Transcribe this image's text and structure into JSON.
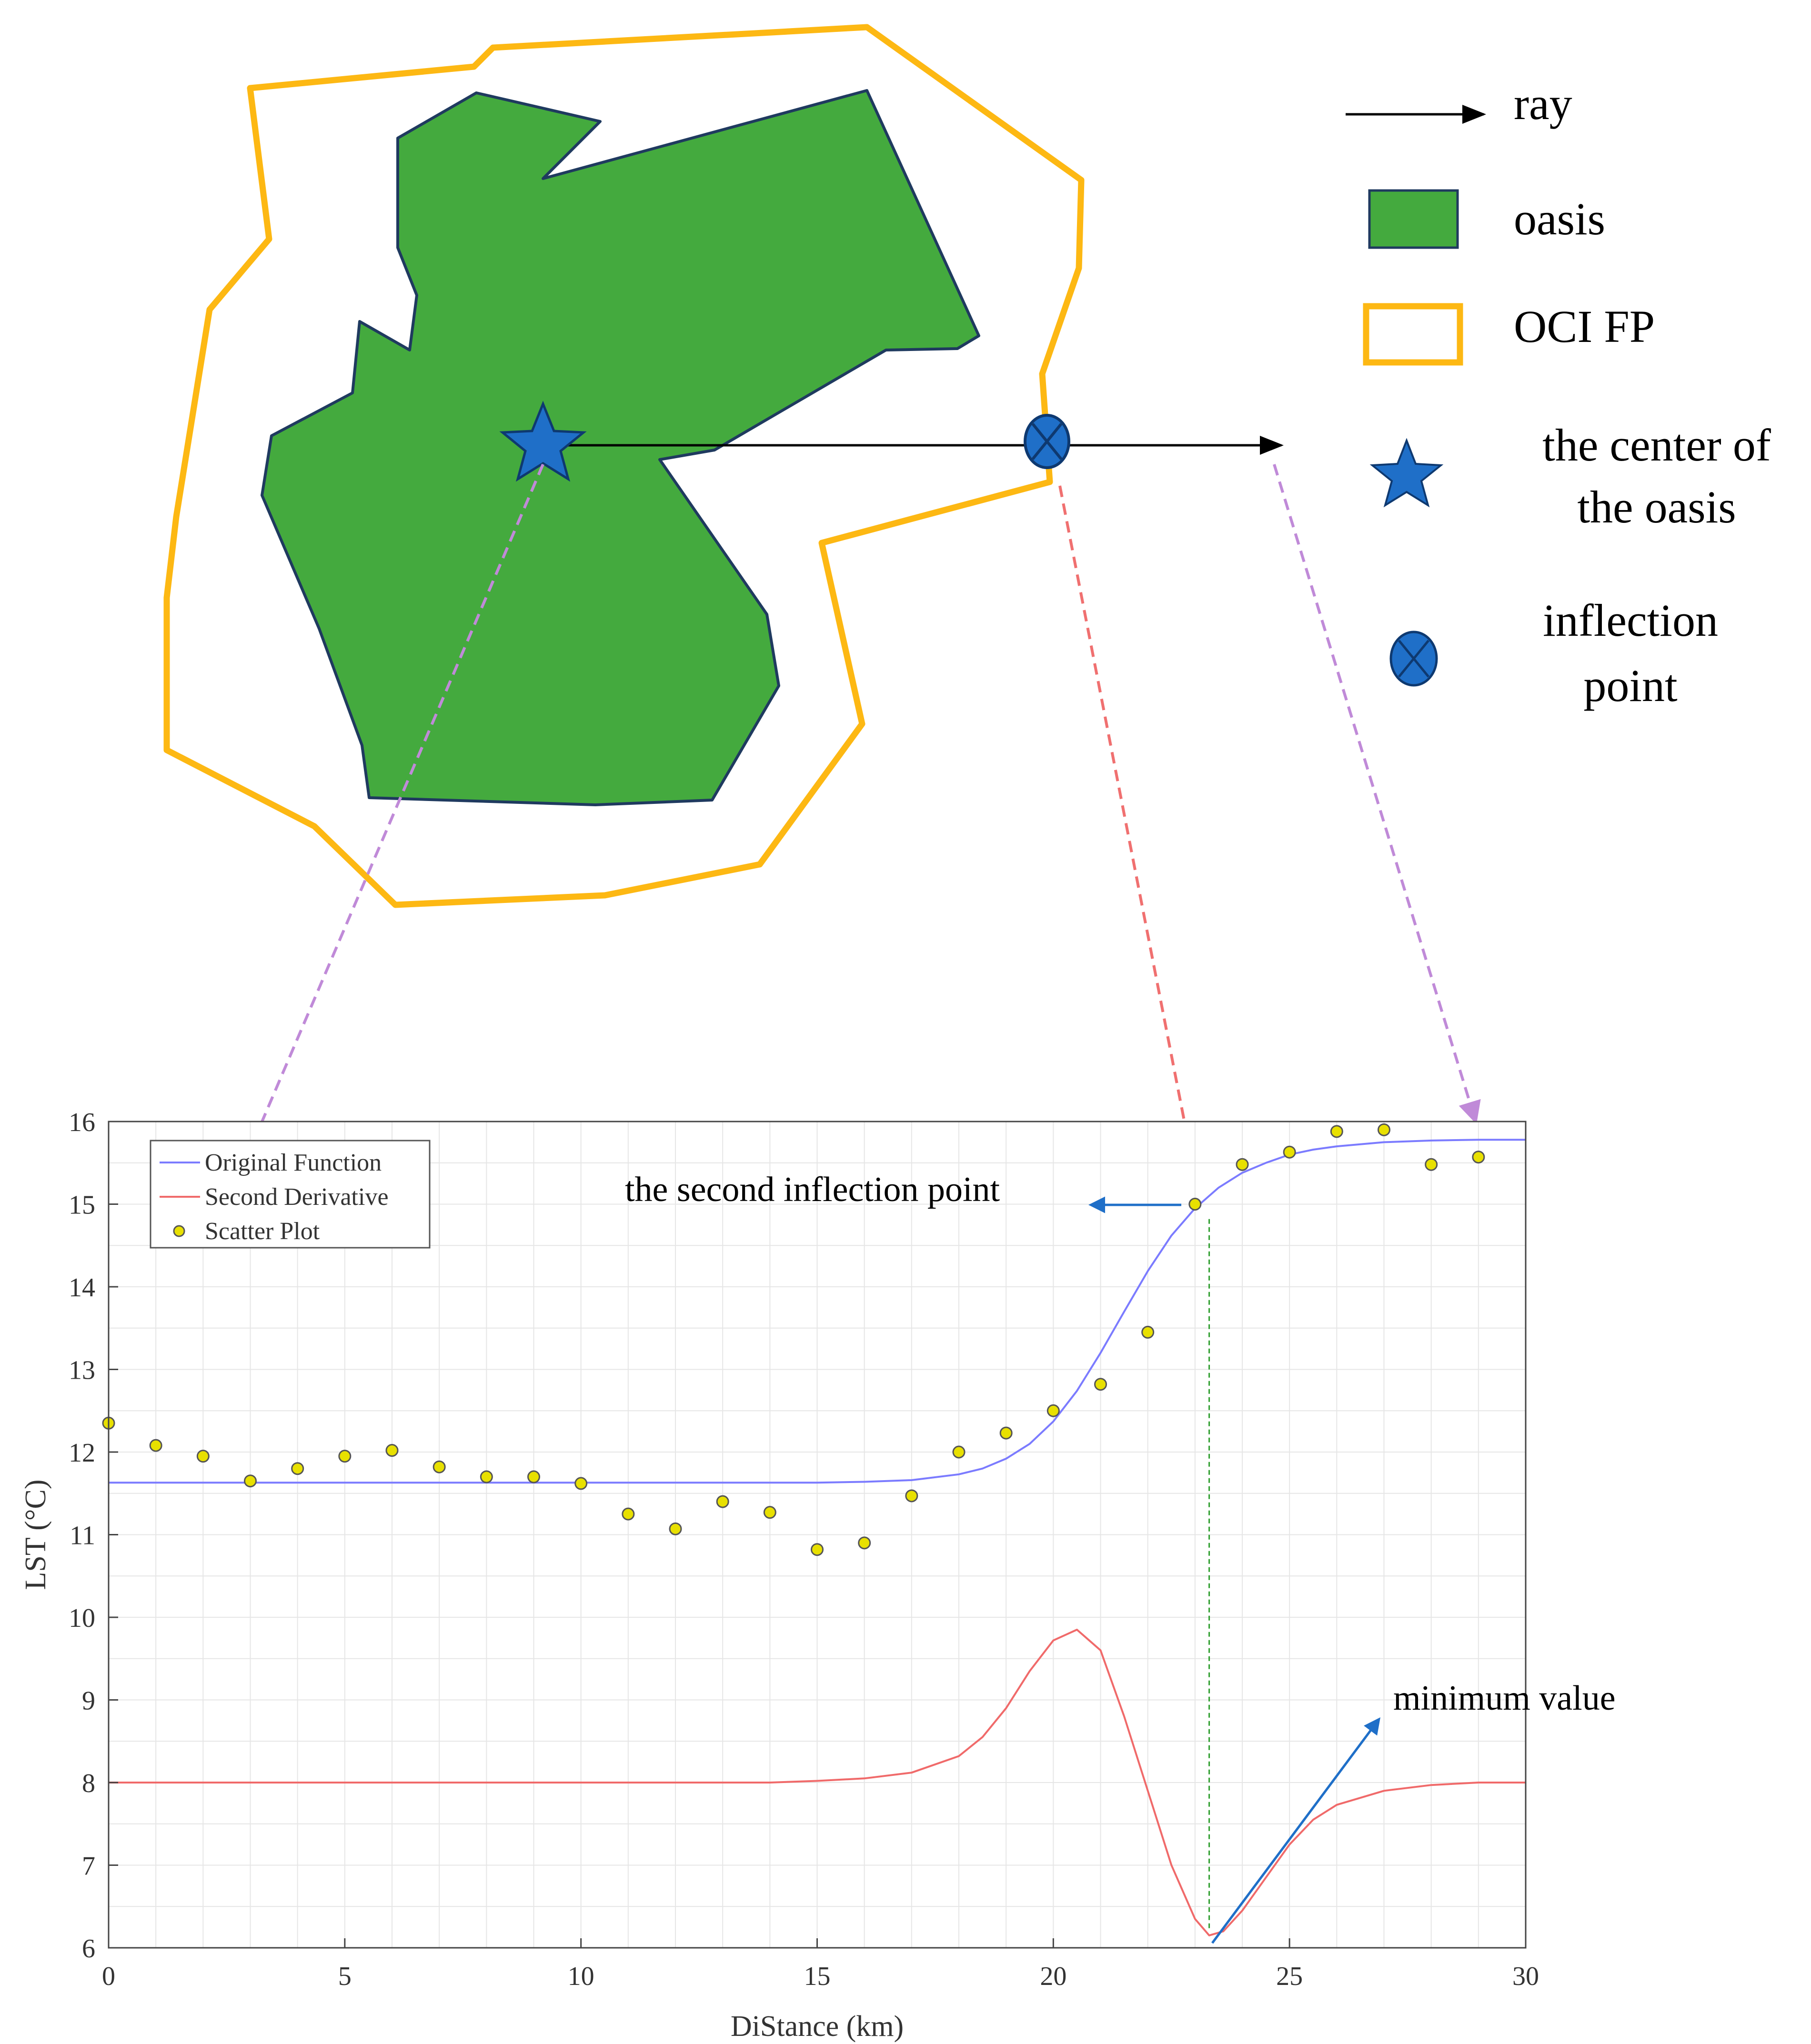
{
  "diagram": {
    "legend": {
      "ray": "ray",
      "oasis": "oasis",
      "oci_fp": "OCI FP",
      "center_line1": "the center of",
      "center_line2": "the oasis",
      "inflection_line1": "inflection",
      "inflection_line2": "point"
    },
    "colors": {
      "oasis_fill": "#44AA3E",
      "oasis_stroke": "#1F3A5F",
      "oci_stroke": "#FDB813",
      "marker_blue": "#1F6FC8",
      "ray": "#000000",
      "pointer_purple": "#C08AD8",
      "pointer_red": "#F07070",
      "annot_arrow": "#1F6FC8"
    },
    "icons": [
      "star-icon",
      "crossed-circle-icon",
      "arrow-right-icon"
    ]
  },
  "chart_data": {
    "type": "line",
    "xlabel": "DiStance (km)",
    "ylabel": "LST (°C)",
    "xlim": [
      0,
      30
    ],
    "ylim": [
      6,
      16
    ],
    "xticks": [
      0,
      5,
      10,
      15,
      20,
      25,
      30
    ],
    "yticks": [
      6,
      7,
      8,
      9,
      10,
      11,
      12,
      13,
      14,
      15,
      16
    ],
    "grid": true,
    "legend_position": "top-left",
    "series": [
      {
        "name": "Original Function",
        "color": "#7B7BFF",
        "x": [
          0,
          2,
          4,
          6,
          8,
          10,
          12,
          14,
          15,
          16,
          17,
          18,
          18.5,
          19,
          19.5,
          20,
          20.5,
          21,
          21.5,
          22,
          22.5,
          23,
          23.5,
          24,
          24.5,
          25,
          25.5,
          26,
          27,
          28,
          29,
          30
        ],
        "y": [
          11.63,
          11.63,
          11.63,
          11.63,
          11.63,
          11.63,
          11.63,
          11.63,
          11.63,
          11.64,
          11.66,
          11.73,
          11.8,
          11.92,
          12.1,
          12.37,
          12.74,
          13.2,
          13.7,
          14.19,
          14.62,
          14.95,
          15.2,
          15.38,
          15.5,
          15.6,
          15.66,
          15.7,
          15.75,
          15.77,
          15.78,
          15.78
        ]
      },
      {
        "name": "Second Derivative",
        "color": "#F06A6A",
        "x": [
          0,
          5,
          10,
          14,
          15,
          16,
          17,
          18,
          18.5,
          19,
          19.5,
          20,
          20.5,
          21,
          21.5,
          22,
          22.5,
          23,
          23.3,
          23.6,
          24,
          24.5,
          25,
          25.5,
          26,
          27,
          28,
          29,
          30
        ],
        "y": [
          8,
          8,
          8,
          8,
          8.02,
          8.05,
          8.12,
          8.32,
          8.55,
          8.9,
          9.35,
          9.72,
          9.85,
          9.6,
          8.8,
          7.9,
          7,
          6.35,
          6.15,
          6.2,
          6.45,
          6.85,
          7.25,
          7.55,
          7.73,
          7.9,
          7.97,
          8,
          8
        ]
      },
      {
        "name": "Scatter Plot",
        "color": "#E8E000",
        "x": [
          0,
          1,
          2,
          3,
          4,
          5,
          6,
          7,
          8,
          9,
          10,
          11,
          12,
          13,
          14,
          15,
          16,
          17,
          18,
          19,
          20,
          21,
          22,
          23,
          24,
          25,
          26,
          27,
          28,
          29
        ],
        "y": [
          12.35,
          12.08,
          11.95,
          11.65,
          11.8,
          11.95,
          12.02,
          11.82,
          11.7,
          11.7,
          11.62,
          11.25,
          11.07,
          11.4,
          11.27,
          10.82,
          10.9,
          11.47,
          12.0,
          12.23,
          12.5,
          12.82,
          13.45,
          15.0,
          15.48,
          15.63,
          15.88,
          15.9,
          15.48,
          15.57
        ]
      }
    ],
    "annotations": {
      "second_inflection": "the second inflection point",
      "minimum": "minimum value"
    }
  }
}
